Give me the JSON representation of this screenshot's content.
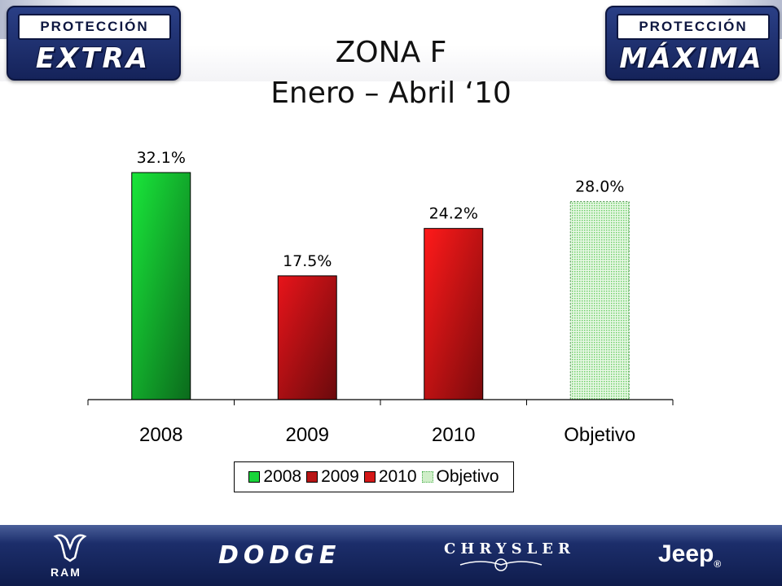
{
  "header": {
    "left_badge": {
      "top": "PROTECCIÓN",
      "bottom": "EXTRA"
    },
    "right_badge": {
      "top": "PROTECCIÓN",
      "bottom": "MÁXIMA"
    }
  },
  "title_line1": "ZONA F",
  "title_line2": "Enero – Abril ‘10",
  "chart_data": {
    "type": "bar",
    "categories": [
      "2008",
      "2009",
      "2010",
      "Objetivo"
    ],
    "values": [
      32.1,
      17.5,
      24.2,
      28.0
    ],
    "data_labels": [
      "32.1%",
      "17.5%",
      "24.2%",
      "28.0%"
    ],
    "legend": [
      "2008",
      "2009",
      "2010",
      "Objetivo"
    ],
    "legend_position": "bottom",
    "colors": [
      "#22b33a",
      "#b81515",
      "#d41818",
      "#cfeec8"
    ],
    "ylim": [
      0,
      32.1
    ],
    "grid": false
  },
  "footer": {
    "brands": [
      "RAM",
      "DODGE",
      "CHRYSLER",
      "Jeep"
    ]
  }
}
